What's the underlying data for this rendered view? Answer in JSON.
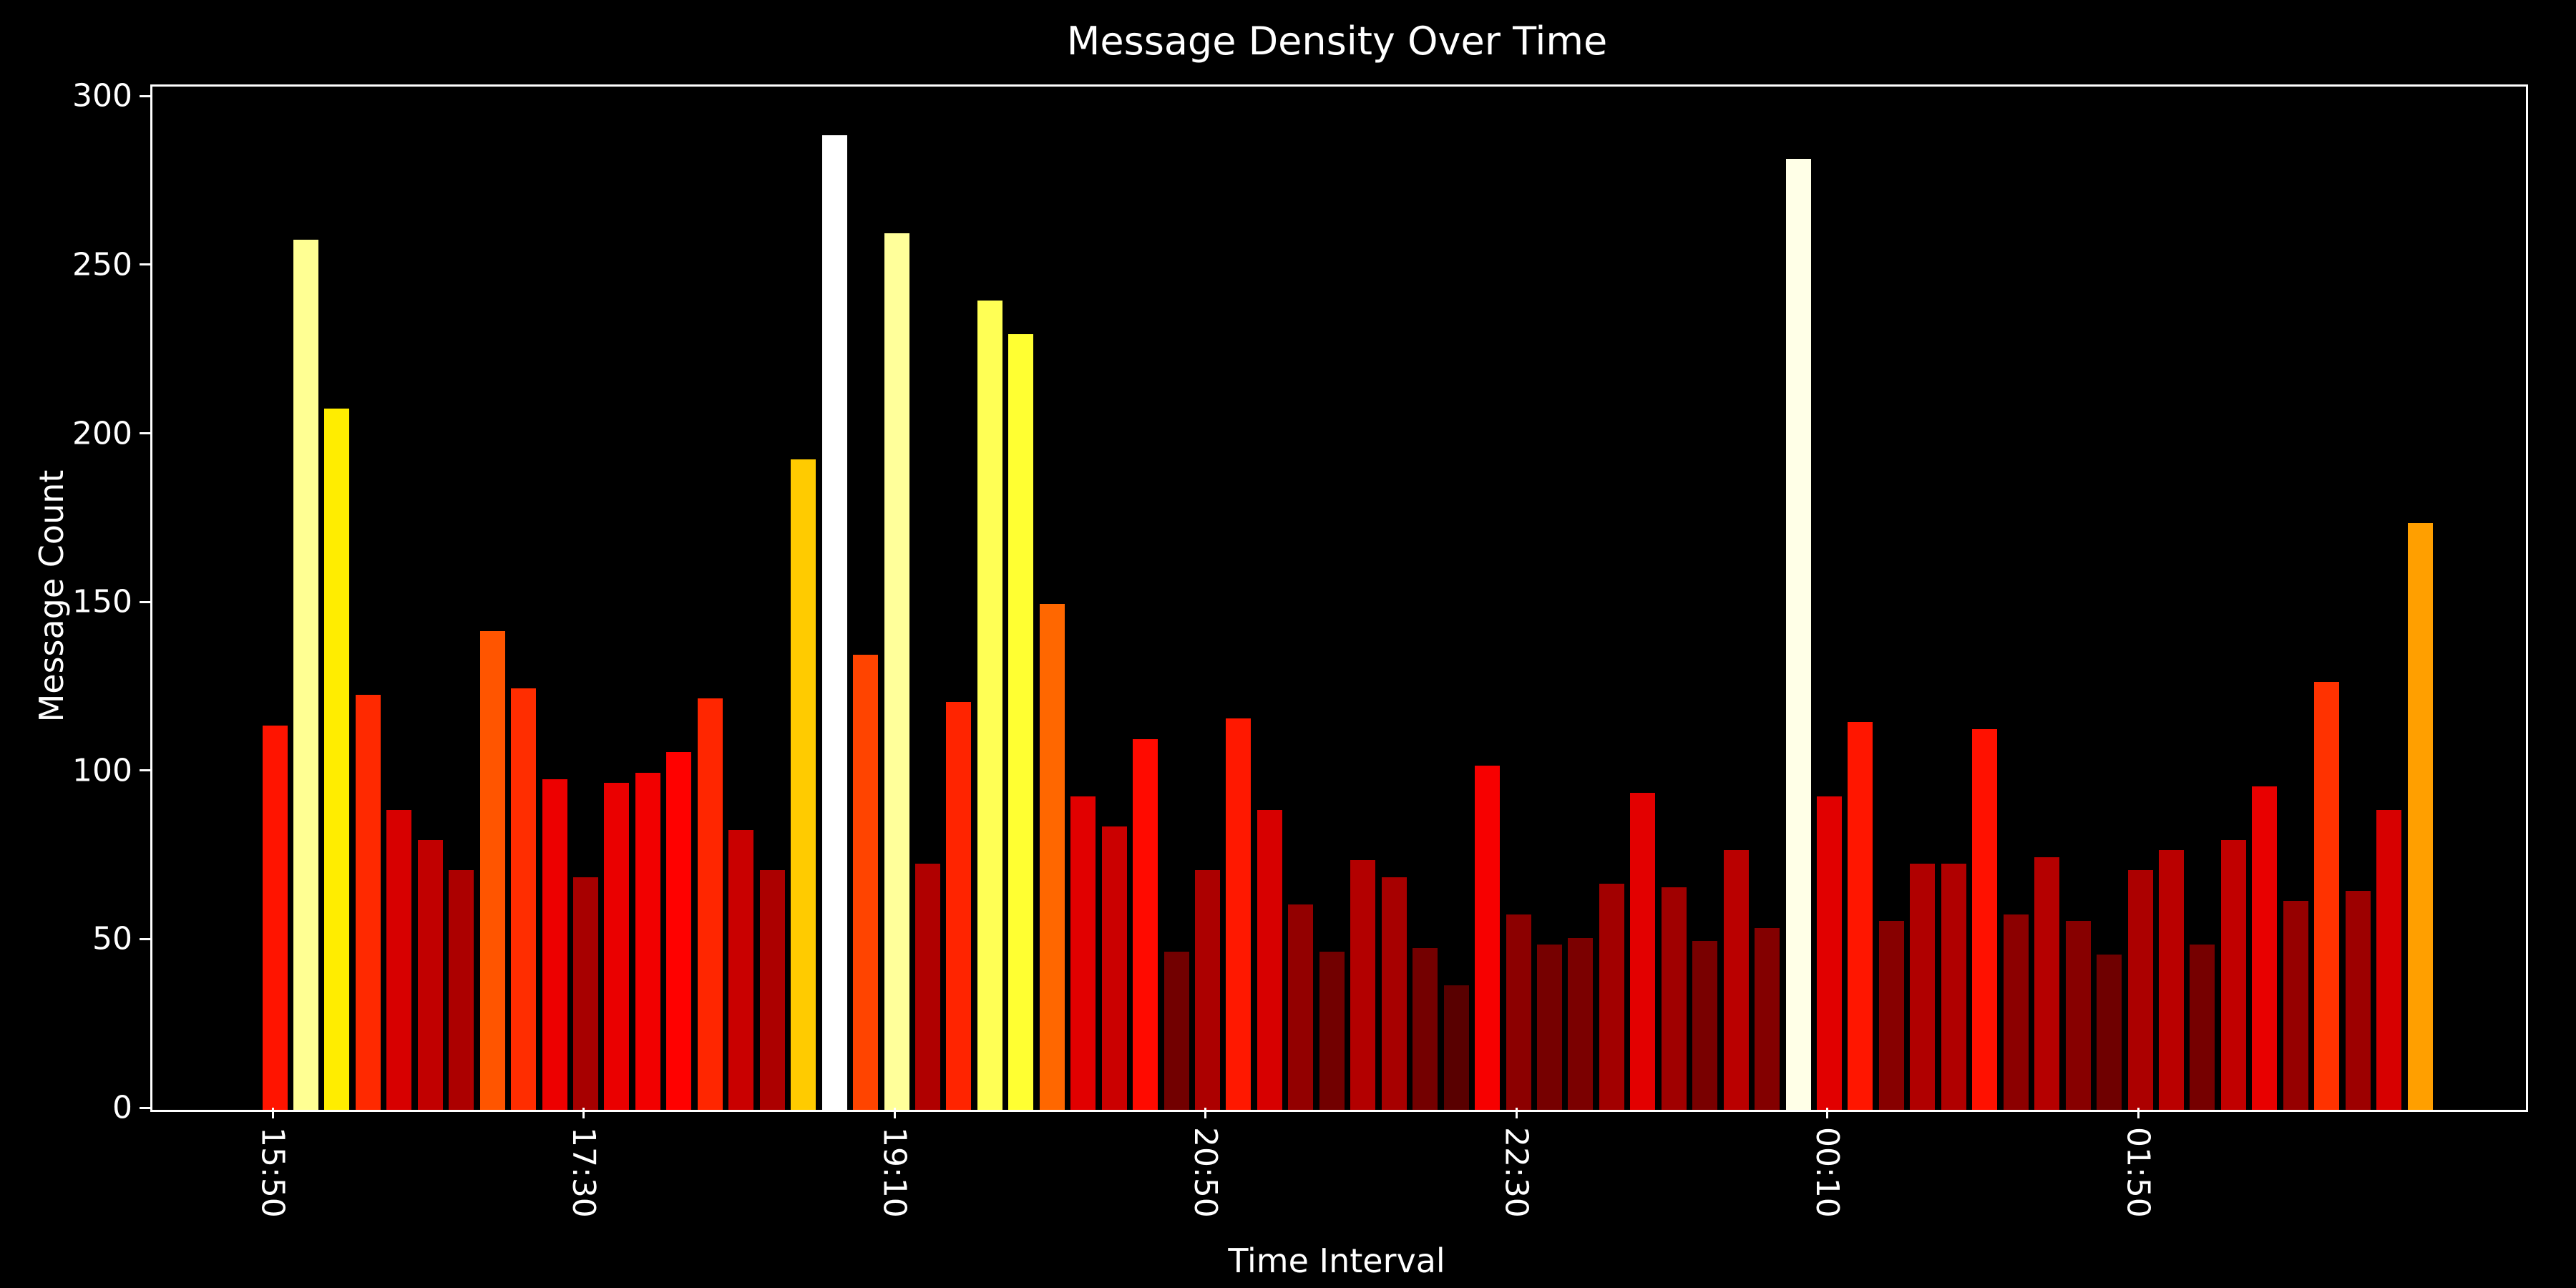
{
  "chart_data": {
    "type": "bar",
    "title": "Message Density Over Time",
    "xlabel": "Time Interval",
    "ylabel": "Message Count",
    "background_color": "#000000",
    "text_color": "#ffffff",
    "colormap": "hot",
    "grid": "off",
    "legend": "none",
    "ylim": [
      0,
      303
    ],
    "yticks": [
      0,
      50,
      100,
      150,
      200,
      250,
      300
    ],
    "xtick_labels": [
      "15:50",
      "17:30",
      "19:10",
      "20:50",
      "22:30",
      "00:10",
      "01:50"
    ],
    "xtick_indices": [
      0,
      10,
      20,
      30,
      40,
      50,
      60
    ],
    "values": [
      114,
      258,
      208,
      123,
      89,
      80,
      71,
      142,
      125,
      98,
      69,
      97,
      100,
      106,
      122,
      83,
      71,
      193,
      289,
      135,
      260,
      73,
      121,
      240,
      230,
      150,
      93,
      84,
      110,
      47,
      71,
      116,
      89,
      61,
      47,
      74,
      69,
      48,
      37,
      102,
      58,
      49,
      51,
      67,
      94,
      66,
      50,
      77,
      54,
      282,
      93,
      115,
      56,
      73,
      73,
      113,
      58,
      75,
      56,
      46,
      71,
      77,
      49,
      80,
      96,
      62,
      127,
      65,
      89,
      174
    ],
    "colors": [
      "#ff1400",
      "#ffff93",
      "#ffed00",
      "#ff2900",
      "#d70000",
      "#c10000",
      "#ac0000",
      "#ff5500",
      "#ff2d00",
      "#ed0000",
      "#a70000",
      "#ea0000",
      "#f20000",
      "#ff0100",
      "#ff2600",
      "#c90000",
      "#ac0000",
      "#ffcb00",
      "#ffffff",
      "#ff4400",
      "#ffff9a",
      "#b00000",
      "#ff2400",
      "#ffff55",
      "#ffff32",
      "#ff6700",
      "#e10000",
      "#cb0000",
      "#ff0a00",
      "#720000",
      "#ac0000",
      "#ff1800",
      "#d70000",
      "#930000",
      "#720000",
      "#b30000",
      "#a70000",
      "#740000",
      "#590000",
      "#f70000",
      "#8c0000",
      "#760000",
      "#7b0000",
      "#a20000",
      "#e30000",
      "#a00000",
      "#790000",
      "#ba0000",
      "#830000",
      "#ffffe7",
      "#e10000",
      "#ff1600",
      "#870000",
      "#b00000",
      "#b00000",
      "#ff1100",
      "#8c0000",
      "#b50000",
      "#870000",
      "#6f0000",
      "#ac0000",
      "#ba0000",
      "#760000",
      "#c10000",
      "#e80000",
      "#960000",
      "#ff3200",
      "#9d0000",
      "#d70000",
      "#ff9f00"
    ]
  }
}
